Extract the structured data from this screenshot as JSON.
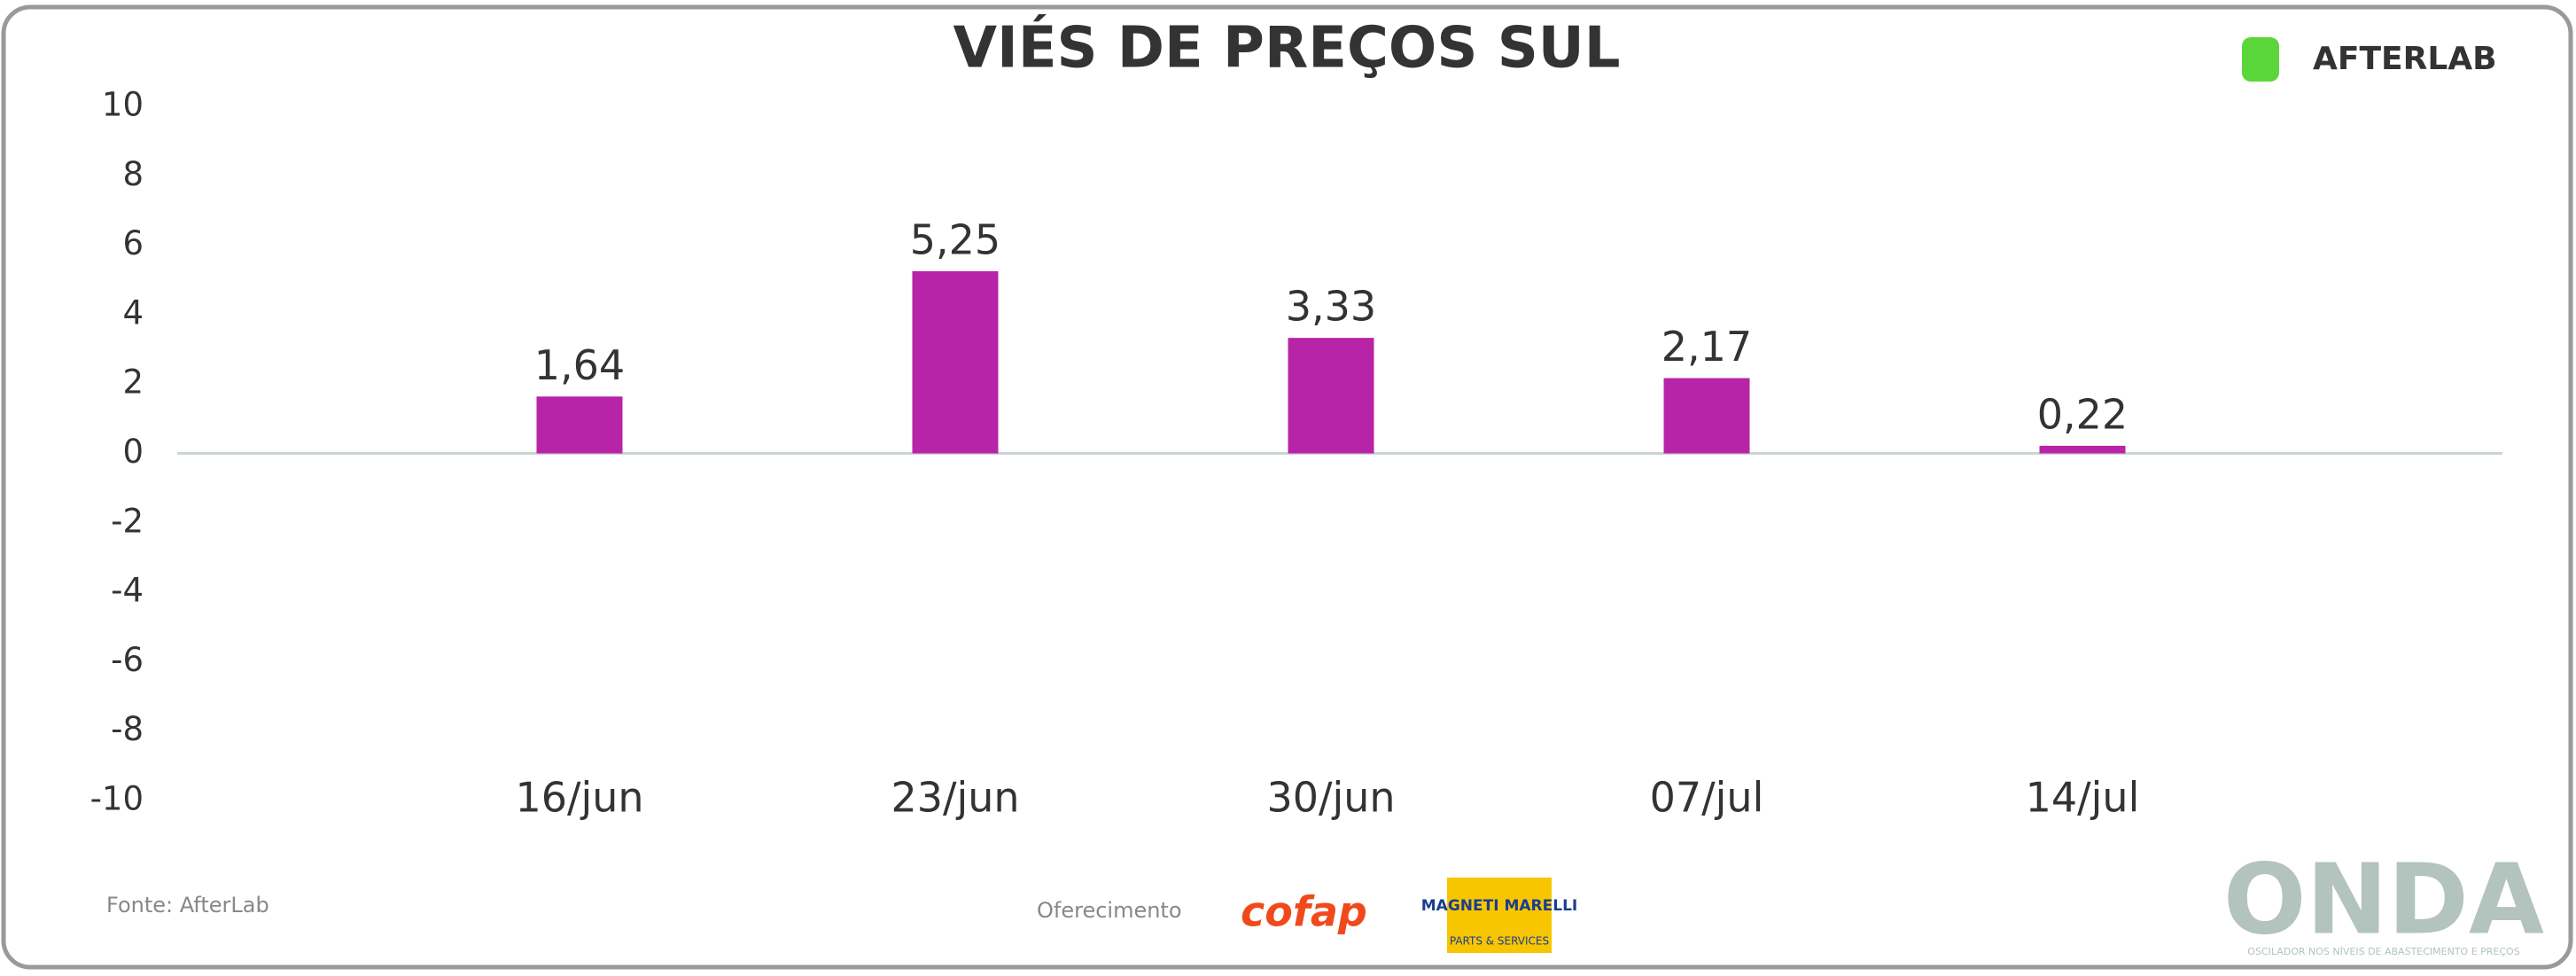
{
  "chart_data": {
    "type": "bar",
    "title": "VIÉS DE PREÇOS SUL",
    "categories": [
      "16/jun",
      "23/jun",
      "30/jun",
      "07/jul",
      "14/jul"
    ],
    "values": [
      1.64,
      5.25,
      3.33,
      2.17,
      0.22
    ],
    "value_labels": [
      "1,64",
      "5,25",
      "3,33",
      "2,17",
      "0,22"
    ],
    "color": "#b824a8",
    "ylim": [
      -10,
      10
    ],
    "yticks": [
      -10,
      -8,
      -6,
      -4,
      -2,
      0,
      2,
      4,
      6,
      8,
      10
    ]
  },
  "source": "Fonte: AfterLab",
  "sponsor_label": "Oferecimento",
  "logos": {
    "afterlab": "AFTERLAB",
    "cofap": "cofap",
    "magneti_marelli": "MAGNETI MARELLI",
    "magneti_marelli_sub": "PARTS & SERVICES",
    "onda": "ONDA",
    "onda_sub": "OSCILADOR NOS NÍVEIS DE ABASTECIMENTO E PREÇOS"
  }
}
